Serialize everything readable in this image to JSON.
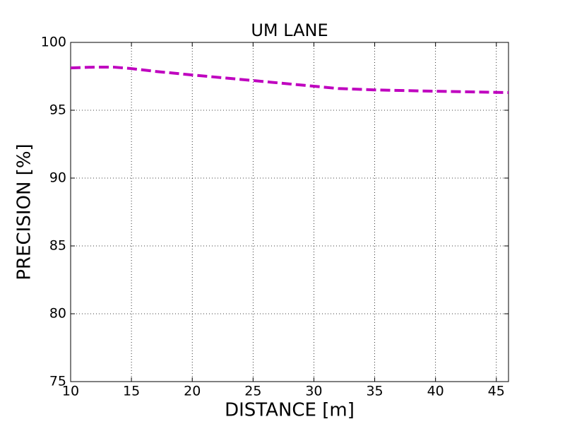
{
  "chart_data": {
    "type": "line",
    "title": "UM LANE",
    "x_label": "DISTANCE [m]",
    "y_label": "PRECISION [%]",
    "x": [
      10,
      12,
      13.5,
      15,
      17,
      20,
      25,
      30,
      32,
      35,
      40,
      46
    ],
    "series": [
      {
        "name": "UM LANE",
        "color": "#bf00bf",
        "values": [
          98.12,
          98.18,
          98.18,
          98.07,
          97.86,
          97.6,
          97.19,
          96.77,
          96.6,
          96.5,
          96.4,
          96.3
        ]
      }
    ],
    "xlim": [
      10,
      46
    ],
    "xticks": [
      10,
      15,
      20,
      25,
      30,
      35,
      40,
      45
    ],
    "ylim": [
      75,
      100
    ],
    "yticks": [
      75,
      80,
      85,
      90,
      95,
      100
    ],
    "grid": true,
    "line_style": "dashed"
  }
}
